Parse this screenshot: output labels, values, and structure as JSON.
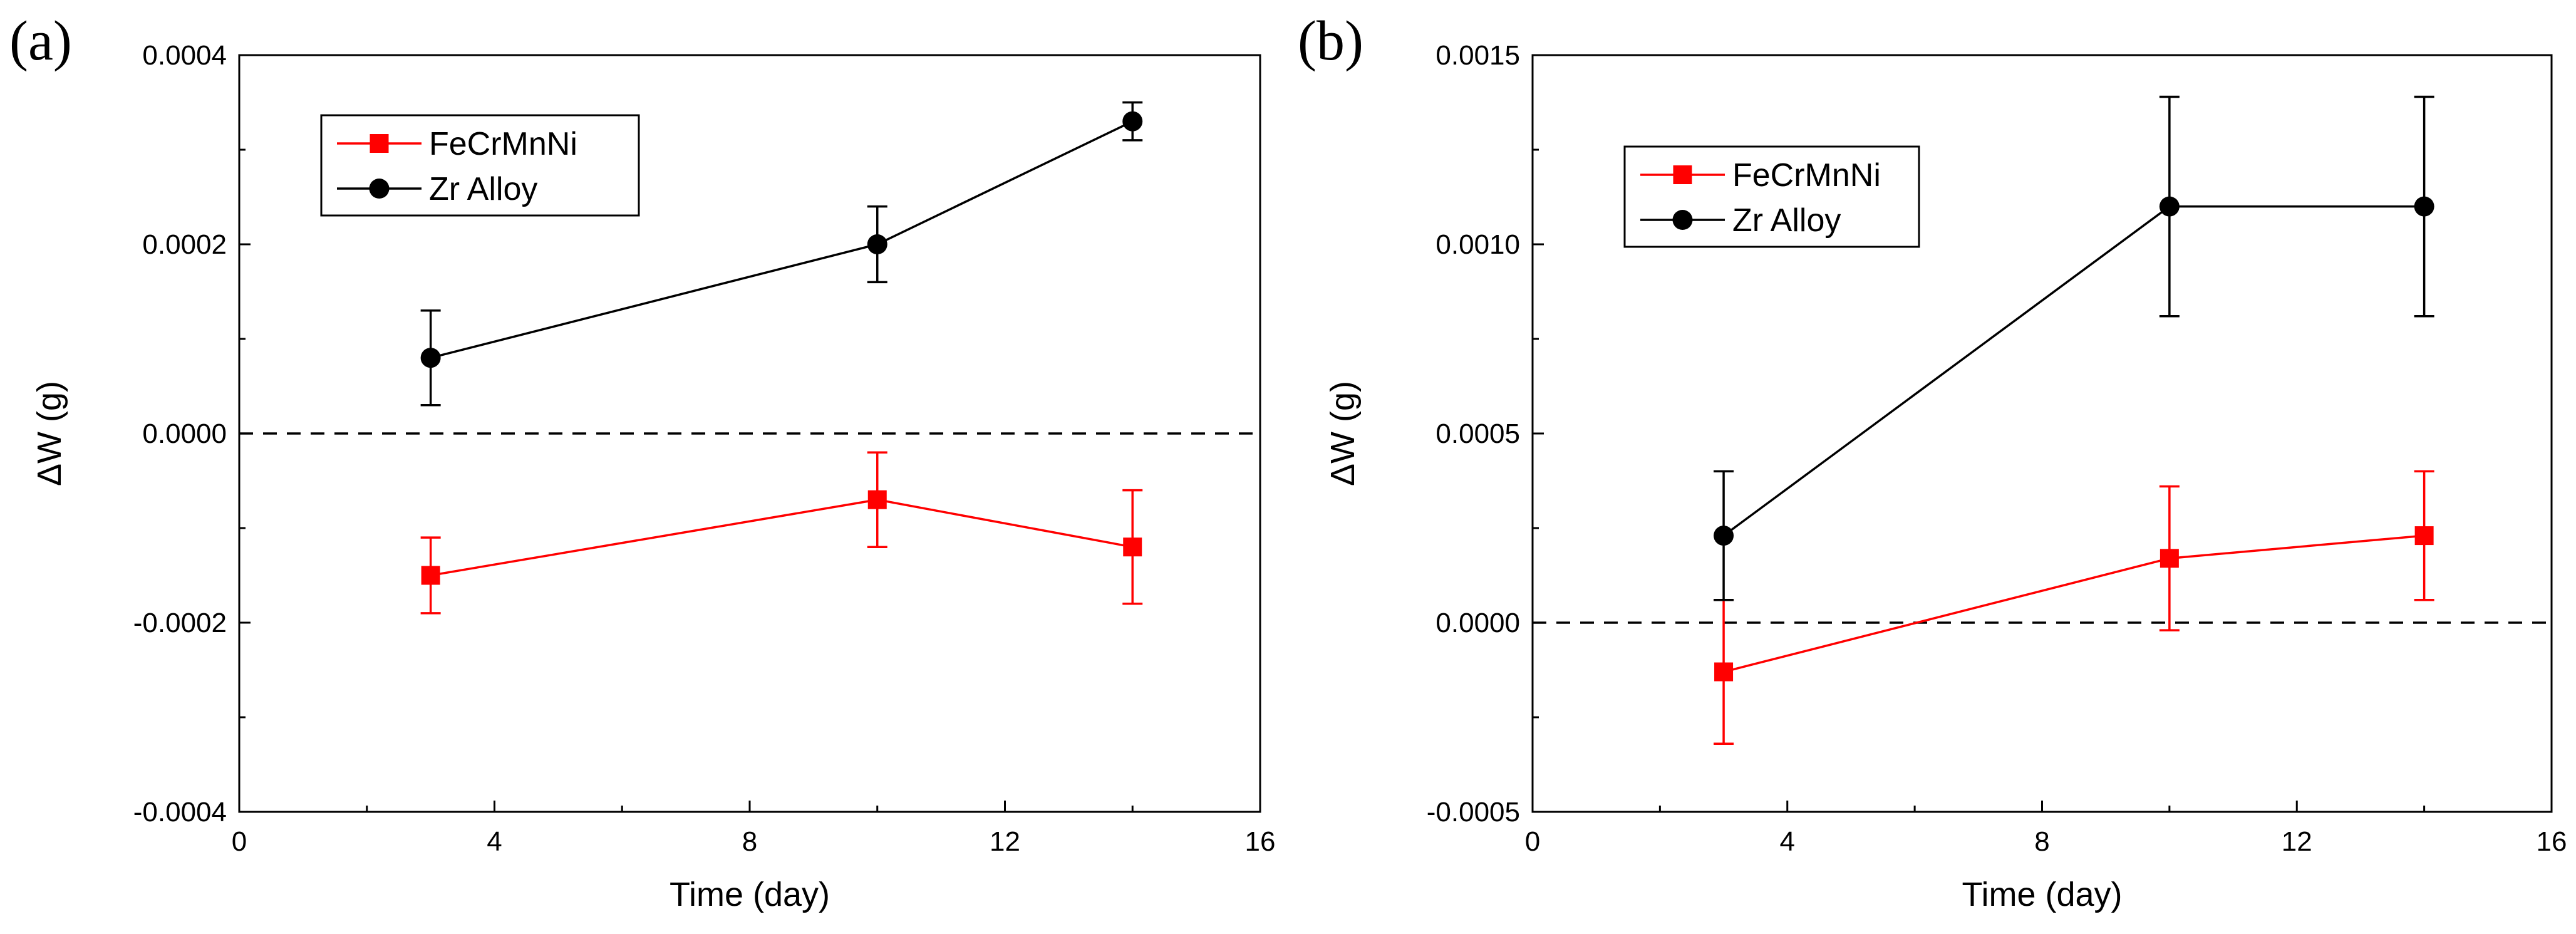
{
  "chart_data": [
    {
      "panel_label": "(a)",
      "type": "line",
      "xlabel": "Time (day)",
      "ylabel": "ΔW (g)",
      "xlim": [
        0,
        16
      ],
      "ylim": [
        -0.0004,
        0.0004
      ],
      "xticks": [
        0,
        4,
        8,
        12,
        16
      ],
      "xtick_labels": [
        "0",
        "4",
        "8",
        "12",
        "16"
      ],
      "yticks": [
        -0.0004,
        -0.0002,
        0,
        0.0002,
        0.0004
      ],
      "ytick_labels": [
        "-0.0004",
        "-0.0002",
        "0.0000",
        "0.0002",
        "0.0004"
      ],
      "reference_line": {
        "y": 0,
        "style": "dashed"
      },
      "grid": false,
      "legend_position": "top-left",
      "series": [
        {
          "name": "FeCrMnNi",
          "color": "#ff0000",
          "marker": "square",
          "x": [
            3,
            10,
            14
          ],
          "y": [
            -0.00015,
            -7e-05,
            -0.00012
          ],
          "error": [
            4e-05,
            5e-05,
            6e-05
          ]
        },
        {
          "name": "Zr Alloy",
          "color": "#000000",
          "marker": "circle",
          "x": [
            3,
            10,
            14
          ],
          "y": [
            8e-05,
            0.0002,
            0.00033
          ],
          "error": [
            5e-05,
            4e-05,
            2e-05
          ]
        }
      ]
    },
    {
      "panel_label": "(b)",
      "type": "line",
      "xlabel": "Time (day)",
      "ylabel": "ΔW (g)",
      "xlim": [
        0,
        16
      ],
      "ylim": [
        -0.0005,
        0.0015
      ],
      "xticks": [
        0,
        4,
        8,
        12,
        16
      ],
      "xtick_labels": [
        "0",
        "4",
        "8",
        "12",
        "16"
      ],
      "yticks": [
        -0.0005,
        0,
        0.0005,
        0.001,
        0.0015
      ],
      "ytick_labels": [
        "-0.0005",
        "0.0000",
        "0.0005",
        "0.0010",
        "0.0015"
      ],
      "reference_line": {
        "y": 0,
        "style": "dashed"
      },
      "grid": false,
      "legend_position": "top-left",
      "series": [
        {
          "name": "FeCrMnNi",
          "color": "#ff0000",
          "marker": "square",
          "x": [
            3,
            10,
            14
          ],
          "y": [
            -0.00013,
            0.00017,
            0.00023
          ],
          "error": [
            0.00019,
            0.00019,
            0.00017
          ]
        },
        {
          "name": "Zr Alloy",
          "color": "#000000",
          "marker": "circle",
          "x": [
            3,
            10,
            14
          ],
          "y": [
            0.00023,
            0.0011,
            0.0011
          ],
          "error": [
            0.00017,
            0.00029,
            0.00029
          ]
        }
      ]
    }
  ]
}
